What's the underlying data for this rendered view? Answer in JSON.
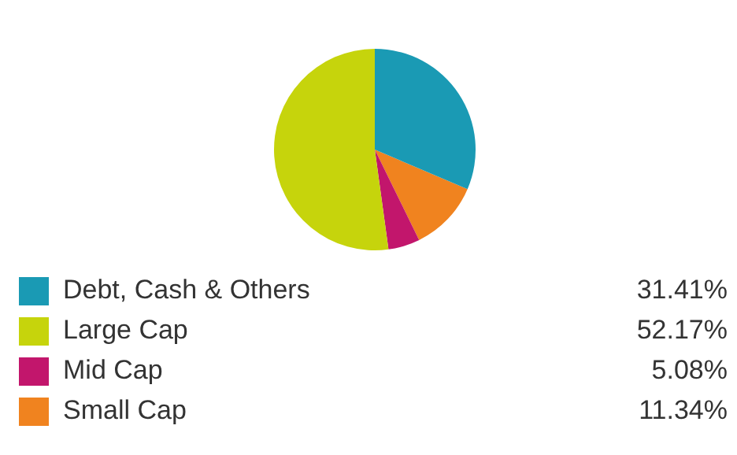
{
  "chart_data": {
    "type": "pie",
    "categories": [
      "Debt, Cash & Others",
      "Large Cap",
      "Mid Cap",
      "Small Cap"
    ],
    "values": [
      31.41,
      52.17,
      5.08,
      11.34
    ],
    "colors": [
      "#1a9ab4",
      "#c6d40c",
      "#c2166c",
      "#f0831f"
    ],
    "value_labels": [
      "31.41%",
      "52.17%",
      "5.08%",
      "11.34%"
    ],
    "legend": "bottom"
  }
}
